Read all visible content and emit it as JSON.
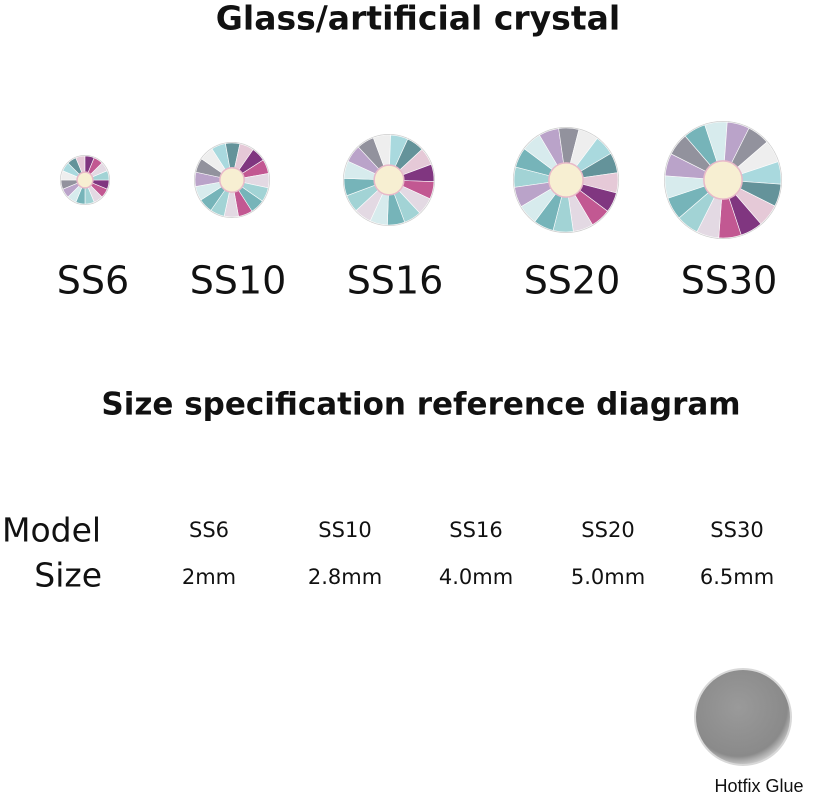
{
  "title": "Glass/artificial crystal",
  "gems": [
    "SS6",
    "SS10",
    "SS16",
    "SS20",
    "SS30"
  ],
  "spec_title": "Size specification reference diagram",
  "table": {
    "row_labels": [
      "Model",
      "Size"
    ],
    "rows": [
      [
        "SS6",
        "SS10",
        "SS16",
        "SS20",
        "SS30"
      ],
      [
        "2mm",
        "2.8mm",
        "4.0mm",
        "5.0mm",
        "6.5mm"
      ]
    ]
  },
  "hotfix_label": "Hotfix Glue"
}
